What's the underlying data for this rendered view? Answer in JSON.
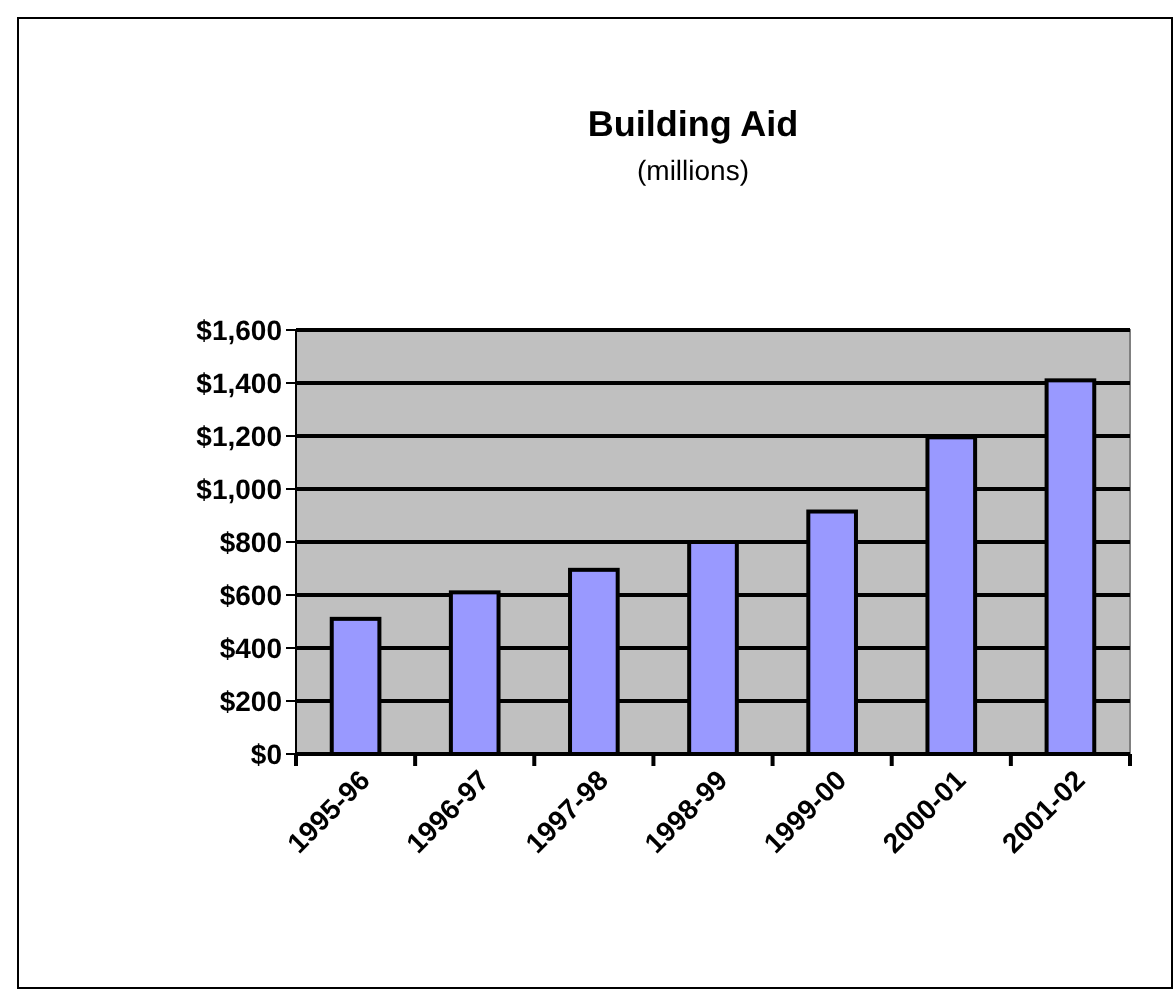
{
  "chart_data": {
    "type": "bar",
    "title": "Building Aid",
    "subtitle": "(millions)",
    "categories": [
      "1995-96",
      "1996-97",
      "1997-98",
      "1998-99",
      "1999-00",
      "2000-01",
      "2001-02"
    ],
    "values": [
      510,
      610,
      695,
      800,
      915,
      1195,
      1410
    ],
    "color": "#9999ff",
    "ylim": [
      0,
      1600
    ],
    "yticks": [
      {
        "value": 0,
        "label": "$0"
      },
      {
        "value": 200,
        "label": "$200"
      },
      {
        "value": 400,
        "label": "$400"
      },
      {
        "value": 600,
        "label": "$600"
      },
      {
        "value": 800,
        "label": "$800"
      },
      {
        "value": 1000,
        "label": "$1,000"
      },
      {
        "value": 1200,
        "label": "$1,200"
      },
      {
        "value": 1400,
        "label": "$1,400"
      },
      {
        "value": 1600,
        "label": "$1,600"
      }
    ],
    "grid": "y"
  }
}
